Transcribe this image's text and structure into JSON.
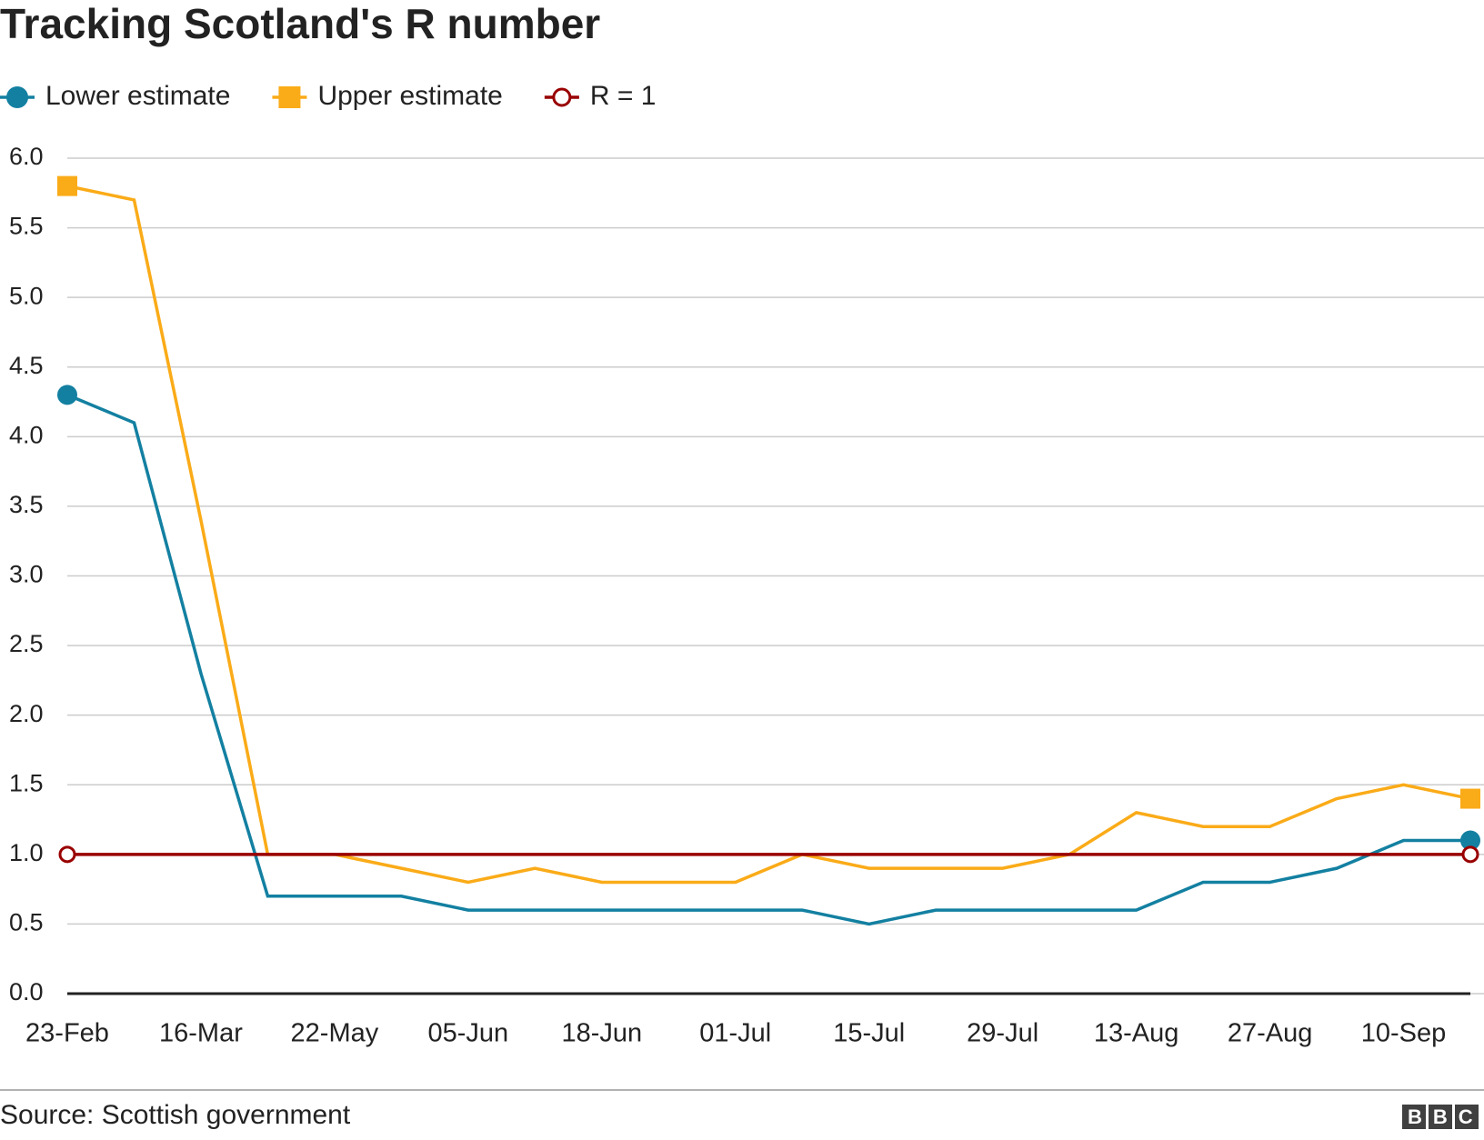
{
  "chart_data": {
    "type": "line",
    "title": "Tracking Scotland's R number",
    "categories": [
      "23-Feb",
      null,
      "16-Mar",
      null,
      "22-May",
      null,
      "05-Jun",
      null,
      "18-Jun",
      null,
      "01-Jul",
      null,
      "15-Jul",
      null,
      "29-Jul",
      null,
      "13-Aug",
      null,
      "27-Aug",
      null,
      "10-Sep",
      null
    ],
    "series": [
      {
        "name": "Lower estimate",
        "color": "#1380a1",
        "marker": "circle",
        "hollow": false,
        "values": [
          4.3,
          4.1,
          2.3,
          0.7,
          0.7,
          0.7,
          0.6,
          0.6,
          0.6,
          0.6,
          0.6,
          0.6,
          0.5,
          0.6,
          0.6,
          0.6,
          0.6,
          0.8,
          0.8,
          0.9,
          1.1,
          1.1
        ]
      },
      {
        "name": "Upper estimate",
        "color": "#faab18",
        "marker": "square",
        "hollow": false,
        "values": [
          5.8,
          5.7,
          3.4,
          1.0,
          1.0,
          0.9,
          0.8,
          0.9,
          0.8,
          0.8,
          0.8,
          1.0,
          0.9,
          0.9,
          0.9,
          1.0,
          1.3,
          1.2,
          1.2,
          1.4,
          1.5,
          1.4
        ]
      },
      {
        "name": "R = 1",
        "color": "#990000",
        "marker": "circle",
        "hollow": true,
        "values": [
          1.0,
          1.0,
          1.0,
          1.0,
          1.0,
          1.0,
          1.0,
          1.0,
          1.0,
          1.0,
          1.0,
          1.0,
          1.0,
          1.0,
          1.0,
          1.0,
          1.0,
          1.0,
          1.0,
          1.0,
          1.0,
          1.0
        ]
      }
    ],
    "ylim": [
      0,
      6
    ],
    "yticks": [
      {
        "value": 0,
        "label": "0.0"
      },
      0.5,
      {
        "value": 1,
        "label": "1.0"
      },
      1.5,
      {
        "value": 2,
        "label": "2.0"
      },
      2.5,
      {
        "value": 3,
        "label": "3.0"
      },
      3.5,
      {
        "value": 4,
        "label": "4.0"
      },
      4.5,
      {
        "value": 5,
        "label": "5.0"
      },
      5.5,
      {
        "value": 6,
        "label": "6.0"
      }
    ],
    "grid": true,
    "source": "Source: Scottish government",
    "logo": "BBC"
  }
}
